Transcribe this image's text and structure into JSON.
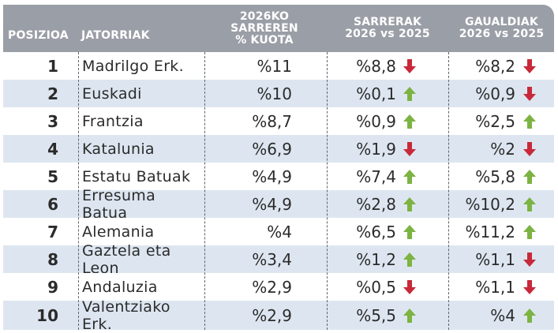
{
  "header": {
    "position": "POSIZIOA",
    "origin": "JATORRIAK",
    "quota_line1": "2026KO SARREREN",
    "quota_line2": "% KUOTA",
    "entries_line1": "SARRERAK",
    "entries_line2": "2026 vs 2025",
    "overnights_line1": "GAUALDIAK",
    "overnights_line2": "2026 vs 2025"
  },
  "colors": {
    "header_bg": "#9a9ea6",
    "shaded_row": "#dde6f0",
    "up_arrow": "#7cb342",
    "down_arrow": "#c8293a"
  },
  "rows": [
    {
      "pos": "1",
      "origin": "Madrilgo Erk.",
      "quota": "%11",
      "entries": "%8,8",
      "entries_dir": "down",
      "overnights": "%8,2",
      "overnights_dir": "down"
    },
    {
      "pos": "2",
      "origin": "Euskadi",
      "quota": "%10",
      "entries": "%0,1",
      "entries_dir": "up",
      "overnights": "%0,9",
      "overnights_dir": "down"
    },
    {
      "pos": "3",
      "origin": "Frantzia",
      "quota": "%8,7",
      "entries": "%0,9",
      "entries_dir": "up",
      "overnights": "%2,5",
      "overnights_dir": "up"
    },
    {
      "pos": "4",
      "origin": "Katalunia",
      "quota": "%6,9",
      "entries": "%1,9",
      "entries_dir": "down",
      "overnights": "%2",
      "overnights_dir": "down"
    },
    {
      "pos": "5",
      "origin": "Estatu Batuak",
      "quota": "%4,9",
      "entries": "%7,4",
      "entries_dir": "up",
      "overnights": "%5,8",
      "overnights_dir": "up"
    },
    {
      "pos": "6",
      "origin": "Erresuma Batua",
      "quota": "%4,9",
      "entries": "%2,8",
      "entries_dir": "up",
      "overnights": "%10,2",
      "overnights_dir": "up"
    },
    {
      "pos": "7",
      "origin": "Alemania",
      "quota": "%4",
      "entries": "%6,5",
      "entries_dir": "up",
      "overnights": "%11,2",
      "overnights_dir": "up"
    },
    {
      "pos": "8",
      "origin": "Gaztela eta Leon",
      "quota": "%3,4",
      "entries": "%1,2",
      "entries_dir": "up",
      "overnights": "%1,1",
      "overnights_dir": "down"
    },
    {
      "pos": "9",
      "origin": "Andaluzia",
      "quota": "%2,9",
      "entries": "%0,5",
      "entries_dir": "down",
      "overnights": "%1,1",
      "overnights_dir": "down"
    },
    {
      "pos": "10",
      "origin": "Valentziako Erk.",
      "quota": "%2,9",
      "entries": "%5,5",
      "entries_dir": "up",
      "overnights": "%4",
      "overnights_dir": "up"
    }
  ]
}
